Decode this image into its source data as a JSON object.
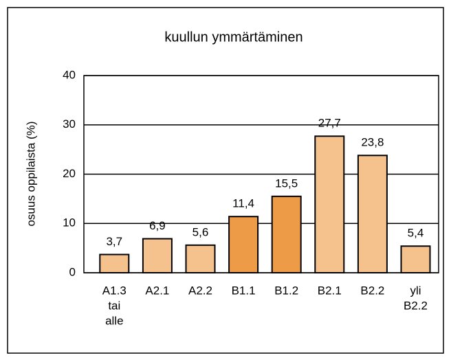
{
  "chart_data": {
    "type": "bar",
    "title": "kuullun ymmärtäminen",
    "y_label": "osuus oppilaista (%)",
    "categories": [
      [
        "A1.3",
        "tai",
        "alle"
      ],
      [
        "A2.1"
      ],
      [
        "A2.2"
      ],
      [
        "B1.1"
      ],
      [
        "B1.2"
      ],
      [
        "B2.1"
      ],
      [
        "B2.2"
      ],
      [
        "yli",
        "B2.2"
      ]
    ],
    "values": [
      3.7,
      6.9,
      5.6,
      11.4,
      15.5,
      27.7,
      23.8,
      5.4
    ],
    "value_labels": [
      "3,7",
      "6,9",
      "5,6",
      "11,4",
      "15,5",
      "27,7",
      "23,8",
      "5,4"
    ],
    "colors": [
      "#f5c28e",
      "#f5c28e",
      "#f5c28e",
      "#ee9b48",
      "#ee9b48",
      "#f5c28e",
      "#f5c28e",
      "#f5c28e"
    ],
    "ylim": [
      0,
      40
    ],
    "yticks": [
      0,
      10,
      20,
      30,
      40
    ],
    "grid": true
  }
}
